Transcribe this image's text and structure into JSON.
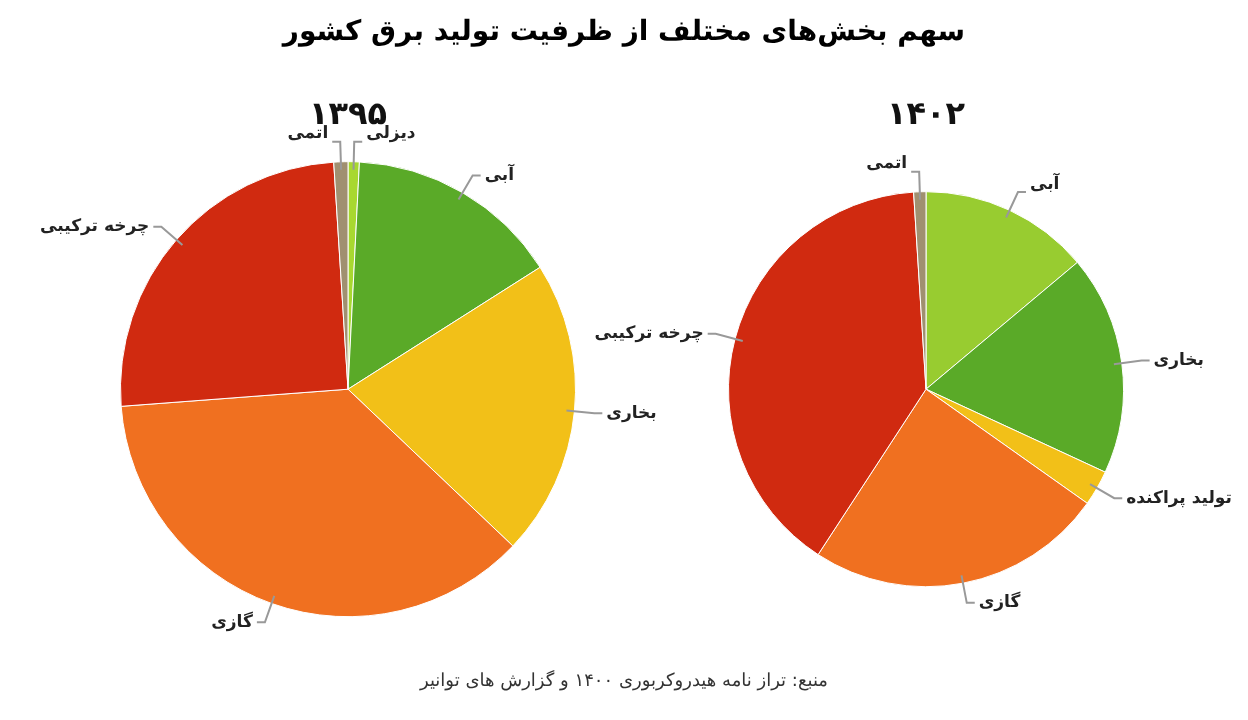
{
  "chart_data": [
    {
      "type": "pie",
      "title": "سهم بخش‌های مختلف از ظرفیت تولید برق کشور",
      "subtitle": "۱۳۹۵",
      "categories": [
        "دیزلی",
        "آبی",
        "بخاری",
        "گازی",
        "چرخه ترکیبی",
        "اتمی"
      ],
      "values": [
        0.8,
        15.2,
        21.1,
        36.7,
        25.2,
        1
      ],
      "colors": [
        "#a8d830",
        "#5aaa28",
        "#f2c018",
        "#f07020",
        "#d02a10",
        "#a09070"
      ],
      "legend": false
    },
    {
      "type": "pie",
      "subtitle": "۱۴۰۲",
      "categories": [
        "آبی",
        "بخاری",
        "تولید پراکنده",
        "گازی",
        "چرخه ترکیبی",
        "اتمی"
      ],
      "values": [
        13.9,
        18,
        2.9,
        24.4,
        39.8,
        1
      ],
      "colors": [
        "#98cc30",
        "#5aaa28",
        "#f2c018",
        "#f07020",
        "#d02a10",
        "#a09070"
      ],
      "legend": false,
      "annotations": [
        "منبع: تراز نامه هیدروکربوری ۱۴۰۰ و گزارش های توانیر"
      ]
    }
  ]
}
